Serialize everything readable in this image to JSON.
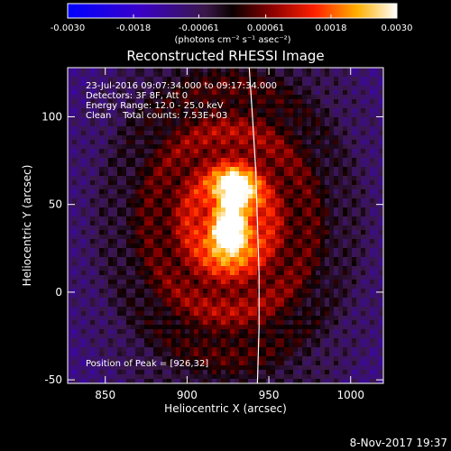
{
  "chart_data": {
    "type": "heatmap",
    "title": "Reconstructed RHESSI Image",
    "xlabel": "Heliocentric X (arcsec)",
    "ylabel": "Heliocentric Y (arcsec)",
    "xlim": [
      827,
      1020
    ],
    "ylim": [
      -52,
      128
    ],
    "xticks": [
      850,
      900,
      950,
      1000
    ],
    "yticks": [
      -50,
      0,
      50,
      100
    ],
    "colorbar": {
      "min": -0.003,
      "max": 0.003,
      "ticks": [
        "-0.0030",
        "-0.0018",
        "-0.00061",
        "0.00061",
        "0.0018",
        "0.0030"
      ],
      "tick_values": [
        -0.003,
        -0.0018,
        -0.00061,
        0.00061,
        0.0018,
        0.003
      ],
      "unit_line": "(photons cm⁻² s⁻¹ asec⁻²)"
    },
    "annotations": [
      "23-Jul-2016 09:07:34.000 to 09:17:34.000",
      "Detectors: 3F 8F, Att 0",
      "Energy Range: 12.0 - 25.0 keV",
      "Clean    Total counts: 7.53E+03"
    ],
    "peak_label": "Position of Peak = [926,32]",
    "peak": [
      926,
      32
    ],
    "sources": [
      {
        "x": 926,
        "y": 32,
        "peak": 0.003
      },
      {
        "x": 929,
        "y": 57,
        "peak": 0.0027
      }
    ],
    "limb": [
      [
        938,
        128
      ],
      [
        940,
        100
      ],
      [
        942,
        70
      ],
      [
        943,
        40
      ],
      [
        944,
        10
      ],
      [
        944,
        -20
      ],
      [
        943,
        -52
      ]
    ],
    "footer": "8-Nov-2017 19:37",
    "colors": {
      "background": "#000000",
      "text": "#ffffff",
      "limb": "#ffffff"
    }
  }
}
